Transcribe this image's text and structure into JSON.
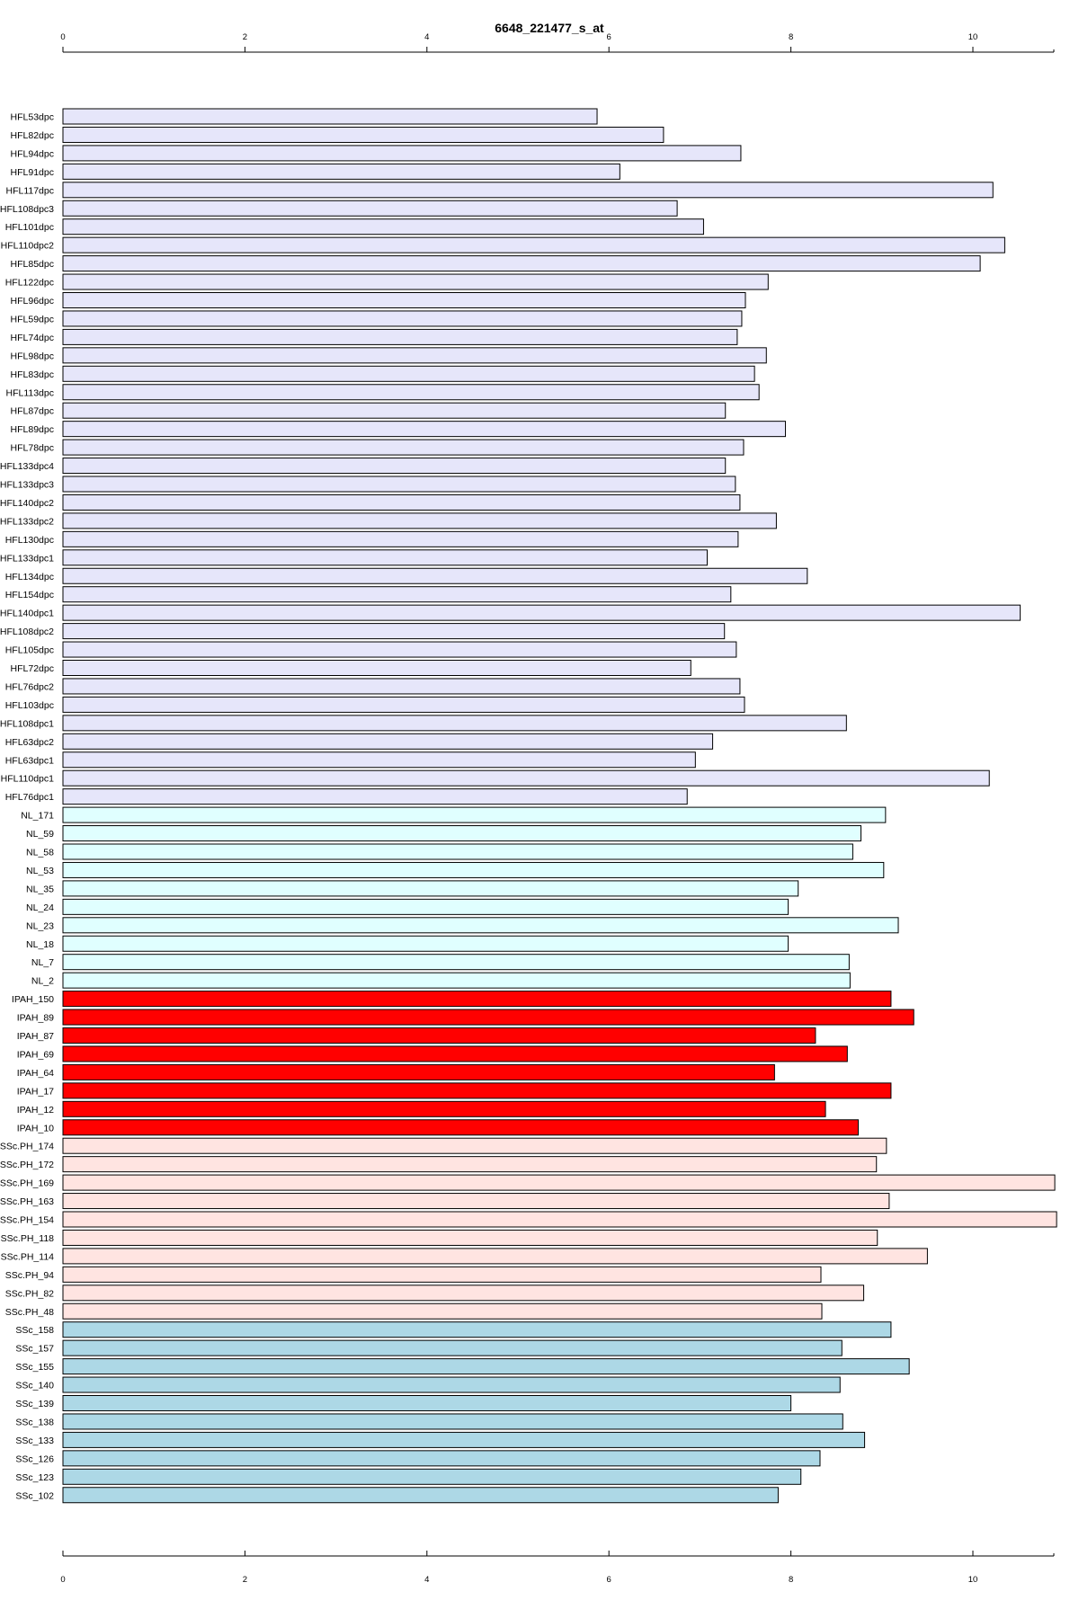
{
  "chart_data": {
    "type": "bar",
    "orientation": "horizontal",
    "title": "6648_221477_s_at",
    "xlabel": "",
    "ylabel": "",
    "xlim": [
      0,
      10.9
    ],
    "xticks": [
      0,
      2,
      4,
      6,
      8,
      10
    ],
    "grid": false,
    "legend": "none",
    "group_colors": {
      "HFL": "#e6e6fa",
      "NL": "#e0ffff",
      "IPAH": "#ff0000",
      "SSc.PH": "#ffe4e1",
      "SSc": "#add8e6"
    },
    "categories": [
      "HFL53dpc",
      "HFL82dpc",
      "HFL94dpc",
      "HFL91dpc",
      "HFL117dpc",
      "HFL108dpc3",
      "HFL101dpc",
      "HFL110dpc2",
      "HFL85dpc",
      "HFL122dpc",
      "HFL96dpc",
      "HFL59dpc",
      "HFL74dpc",
      "HFL98dpc",
      "HFL83dpc",
      "HFL113dpc",
      "HFL87dpc",
      "HFL89dpc",
      "HFL78dpc",
      "HFL133dpc4",
      "HFL133dpc3",
      "HFL140dpc2",
      "HFL133dpc2",
      "HFL130dpc",
      "HFL133dpc1",
      "HFL134dpc",
      "HFL154dpc",
      "HFL140dpc1",
      "HFL108dpc2",
      "HFL105dpc",
      "HFL72dpc",
      "HFL76dpc2",
      "HFL103dpc",
      "HFL108dpc1",
      "HFL63dpc2",
      "HFL63dpc1",
      "HFL110dpc1",
      "HFL76dpc1",
      "NL_171",
      "NL_59",
      "NL_58",
      "NL_53",
      "NL_35",
      "NL_24",
      "NL_23",
      "NL_18",
      "NL_7",
      "NL_2",
      "IPAH_150",
      "IPAH_89",
      "IPAH_87",
      "IPAH_69",
      "IPAH_64",
      "IPAH_17",
      "IPAH_12",
      "IPAH_10",
      "SSc.PH_174",
      "SSc.PH_172",
      "SSc.PH_169",
      "SSc.PH_163",
      "SSc.PH_154",
      "SSc.PH_118",
      "SSc.PH_114",
      "SSc.PH_94",
      "SSc.PH_82",
      "SSc.PH_48",
      "SSc_158",
      "SSc_157",
      "SSc_155",
      "SSc_140",
      "SSc_139",
      "SSc_138",
      "SSc_133",
      "SSc_126",
      "SSc_123",
      "SSc_102"
    ],
    "groups": [
      "HFL",
      "HFL",
      "HFL",
      "HFL",
      "HFL",
      "HFL",
      "HFL",
      "HFL",
      "HFL",
      "HFL",
      "HFL",
      "HFL",
      "HFL",
      "HFL",
      "HFL",
      "HFL",
      "HFL",
      "HFL",
      "HFL",
      "HFL",
      "HFL",
      "HFL",
      "HFL",
      "HFL",
      "HFL",
      "HFL",
      "HFL",
      "HFL",
      "HFL",
      "HFL",
      "HFL",
      "HFL",
      "HFL",
      "HFL",
      "HFL",
      "HFL",
      "HFL",
      "HFL",
      "NL",
      "NL",
      "NL",
      "NL",
      "NL",
      "NL",
      "NL",
      "NL",
      "NL",
      "NL",
      "IPAH",
      "IPAH",
      "IPAH",
      "IPAH",
      "IPAH",
      "IPAH",
      "IPAH",
      "IPAH",
      "SSc.PH",
      "SSc.PH",
      "SSc.PH",
      "SSc.PH",
      "SSc.PH",
      "SSc.PH",
      "SSc.PH",
      "SSc.PH",
      "SSc.PH",
      "SSc.PH",
      "SSc",
      "SSc",
      "SSc",
      "SSc",
      "SSc",
      "SSc",
      "SSc",
      "SSc",
      "SSc",
      "SSc"
    ],
    "values": [
      5.87,
      6.6,
      7.45,
      6.12,
      10.22,
      6.75,
      7.04,
      10.35,
      10.08,
      7.75,
      7.5,
      7.46,
      7.41,
      7.73,
      7.6,
      7.65,
      7.28,
      7.94,
      7.48,
      7.28,
      7.39,
      7.44,
      7.84,
      7.42,
      7.08,
      8.18,
      7.34,
      10.52,
      7.27,
      7.4,
      6.9,
      7.44,
      7.49,
      8.61,
      7.14,
      6.95,
      10.18,
      6.86,
      9.04,
      8.77,
      8.68,
      9.02,
      8.08,
      7.97,
      9.18,
      7.97,
      8.64,
      8.65,
      9.1,
      9.35,
      8.27,
      8.62,
      7.82,
      9.1,
      8.38,
      8.74,
      9.05,
      8.94,
      10.9,
      9.08,
      10.92,
      8.95,
      9.5,
      8.33,
      8.8,
      8.34,
      9.1,
      8.56,
      9.3,
      8.54,
      8.0,
      8.57,
      8.81,
      8.32,
      8.11,
      7.86
    ]
  }
}
